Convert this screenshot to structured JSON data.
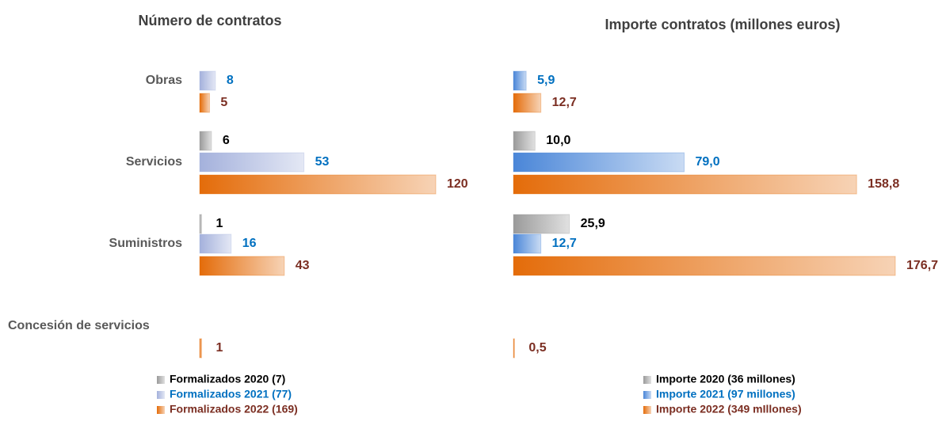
{
  "chart_data": [
    {
      "type": "bar",
      "orientation": "horizontal",
      "title": "Número de contratos",
      "categories": [
        "Obras",
        "Servicios",
        "Suministros",
        "Concesión de servicios"
      ],
      "series": [
        {
          "name": "Formalizados 2020 (7)",
          "color": "#9a9a9a",
          "label_color": "#000000",
          "values": [
            null,
            6,
            1,
            null
          ]
        },
        {
          "name": "Formalizados 2021 (77)",
          "color": "#a4b1dc",
          "label_color": "#0070c0",
          "values": [
            8,
            53,
            16,
            null
          ]
        },
        {
          "name": "Formalizados 2022 (169)",
          "color": "#e46c0a",
          "label_color": "#7b2e22",
          "values": [
            5,
            120,
            43,
            1
          ]
        }
      ]
    },
    {
      "type": "bar",
      "orientation": "horizontal",
      "title": "Importe contratos (millones euros)",
      "series": [
        {
          "name": "Importe 2020 (36 millones)",
          "color": "#9a9a9a",
          "label_color": "#000000",
          "values": [
            null,
            10.0,
            25.9,
            null
          ],
          "value_labels": [
            null,
            "10,0",
            "25,9",
            null
          ]
        },
        {
          "name": "Importe 2021 (97 millones)",
          "color": "#4a86d8",
          "label_color": "#0070c0",
          "values": [
            5.9,
            79.0,
            12.7,
            null
          ],
          "value_labels": [
            "5,9",
            "79,0",
            "12,7",
            null
          ]
        },
        {
          "name": "Importe 2022 (349 mIllones)",
          "color": "#e46c0a",
          "label_color": "#7b2e22",
          "values": [
            12.7,
            158.8,
            176.7,
            0.5
          ],
          "value_labels": [
            "12,7",
            "158,8",
            "176,7",
            "0,5"
          ]
        }
      ]
    }
  ]
}
